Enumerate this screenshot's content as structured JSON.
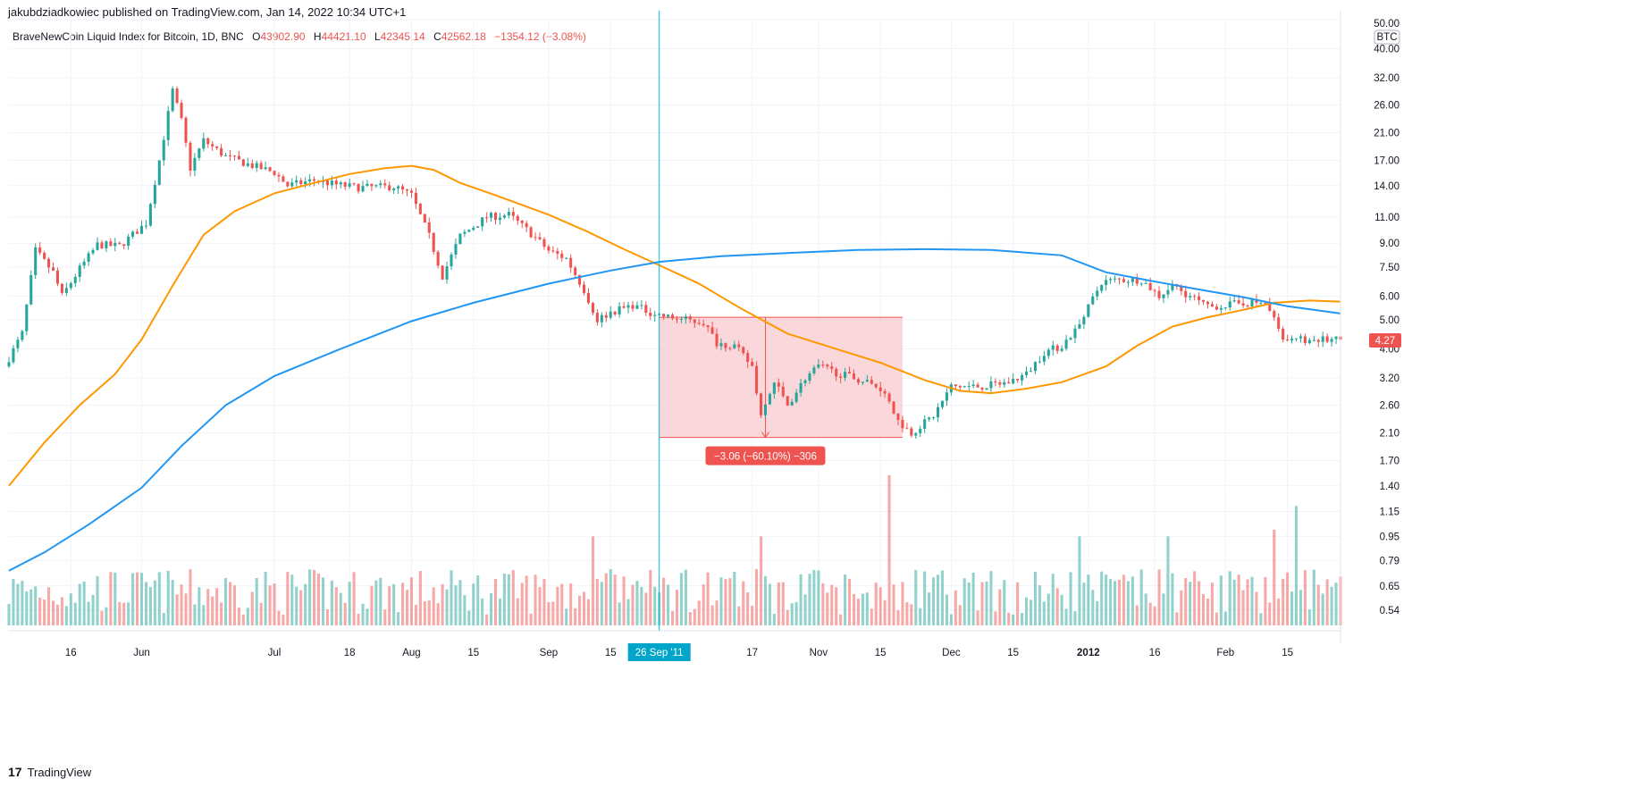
{
  "header": {
    "publisher": "jakubdziadkowiec published on TradingView.com, Jan 14, 2022 10:34 UTC+1"
  },
  "legend": {
    "symbol": "BraveNewCoin Liquid Index for Bitcoin, 1D, BNC",
    "open_label": "O",
    "open": "43902.90",
    "high_label": "H",
    "high": "44421.10",
    "low_label": "L",
    "low": "42345.14",
    "close_label": "C",
    "close": "42562.18",
    "change": "−1354.12 (−3.08%)"
  },
  "footer": {
    "brand": "TradingView",
    "logo_mark": "17"
  },
  "colors": {
    "up": "#26a69a",
    "down": "#ef5350",
    "ma_fast": "#ff9800",
    "ma_slow": "#2196f3",
    "crosshair": "#00bcd4",
    "measure_fill": "#f8c9cd",
    "measure_edge": "#ef5350"
  },
  "chart_data": {
    "type": "candlestick",
    "y_scale": "log",
    "ylim": [
      0.48,
      50
    ],
    "y_unit_badge": "BTC",
    "y_ticks": [
      "50.00",
      "40.00",
      "32.00",
      "26.00",
      "21.00",
      "17.00",
      "14.00",
      "11.00",
      "9.00",
      "7.50",
      "6.00",
      "5.00",
      "4.00",
      "3.20",
      "2.60",
      "2.10",
      "1.70",
      "1.40",
      "1.15",
      "0.95",
      "0.79",
      "0.65",
      "0.54"
    ],
    "x_ticks": [
      {
        "label": "16",
        "date": "2011-05-16"
      },
      {
        "label": "Jun",
        "date": "2011-06-01"
      },
      {
        "label": "Jul",
        "date": "2011-07-01"
      },
      {
        "label": "18",
        "date": "2011-07-18"
      },
      {
        "label": "Aug",
        "date": "2011-08-01"
      },
      {
        "label": "15",
        "date": "2011-08-15"
      },
      {
        "label": "Sep",
        "date": "2011-09-01"
      },
      {
        "label": "15",
        "date": "2011-09-15"
      },
      {
        "label": "17",
        "date": "2011-10-17"
      },
      {
        "label": "Nov",
        "date": "2011-11-01"
      },
      {
        "label": "15",
        "date": "2011-11-15"
      },
      {
        "label": "Dec",
        "date": "2011-12-01"
      },
      {
        "label": "15",
        "date": "2011-12-15"
      },
      {
        "label": "2012",
        "date": "2012-01-01"
      },
      {
        "label": "16",
        "date": "2012-01-16"
      },
      {
        "label": "Feb",
        "date": "2012-02-01"
      },
      {
        "label": "15",
        "date": "2012-02-15"
      }
    ],
    "x_range": [
      "2011-05-02",
      "2012-02-27"
    ],
    "crosshair": {
      "date": "2011-09-26",
      "label": "26 Sep '11"
    },
    "last_price": {
      "value": 4.27,
      "label": "4.27"
    },
    "measure": {
      "start_date": "2011-09-26",
      "end_date": "2011-11-20",
      "top": 5.1,
      "bottom": 2.03,
      "arrow_date": "2011-10-20",
      "label": "−3.06 (−60.10%) −306"
    },
    "price_path": [
      [
        "2011-05-01",
        3.5
      ],
      [
        "2011-05-05",
        4.5
      ],
      [
        "2011-05-08",
        8.5
      ],
      [
        "2011-05-12",
        7.2
      ],
      [
        "2011-05-14",
        6.0
      ],
      [
        "2011-05-18",
        7.4
      ],
      [
        "2011-05-22",
        8.9
      ],
      [
        "2011-05-27",
        8.8
      ],
      [
        "2011-06-02",
        10.5
      ],
      [
        "2011-06-05",
        17.0
      ],
      [
        "2011-06-08",
        29.0
      ],
      [
        "2011-06-10",
        23.0
      ],
      [
        "2011-06-12",
        16.0
      ],
      [
        "2011-06-15",
        19.8
      ],
      [
        "2011-06-20",
        17.5
      ],
      [
        "2011-06-25",
        16.5
      ],
      [
        "2011-07-01",
        15.5
      ],
      [
        "2011-07-04",
        14.0
      ],
      [
        "2011-07-10",
        14.6
      ],
      [
        "2011-07-15",
        14.1
      ],
      [
        "2011-07-20",
        13.8
      ],
      [
        "2011-07-28",
        13.9
      ],
      [
        "2011-08-01",
        13.0
      ],
      [
        "2011-08-05",
        9.5
      ],
      [
        "2011-08-08",
        7.0
      ],
      [
        "2011-08-12",
        9.5
      ],
      [
        "2011-08-18",
        11.0
      ],
      [
        "2011-08-23",
        11.2
      ],
      [
        "2011-08-28",
        9.7
      ],
      [
        "2011-09-01",
        8.5
      ],
      [
        "2011-09-05",
        8.0
      ],
      [
        "2011-09-09",
        6.3
      ],
      [
        "2011-09-12",
        5.0
      ],
      [
        "2011-09-15",
        5.3
      ],
      [
        "2011-09-20",
        5.6
      ],
      [
        "2011-09-24",
        5.3
      ],
      [
        "2011-09-28",
        5.1
      ],
      [
        "2011-10-02",
        5.0
      ],
      [
        "2011-10-06",
        4.9
      ],
      [
        "2011-10-09",
        4.2
      ],
      [
        "2011-10-13",
        4.1
      ],
      [
        "2011-10-17",
        3.5
      ],
      [
        "2011-10-19",
        2.4
      ],
      [
        "2011-10-22",
        3.1
      ],
      [
        "2011-10-25",
        2.6
      ],
      [
        "2011-10-29",
        3.2
      ],
      [
        "2011-11-01",
        3.5
      ],
      [
        "2011-11-06",
        3.3
      ],
      [
        "2011-11-12",
        3.1
      ],
      [
        "2011-11-16",
        2.9
      ],
      [
        "2011-11-19",
        2.3
      ],
      [
        "2011-11-22",
        2.1
      ],
      [
        "2011-11-27",
        2.4
      ],
      [
        "2011-12-01",
        3.0
      ],
      [
        "2011-12-08",
        3.0
      ],
      [
        "2011-12-14",
        3.1
      ],
      [
        "2011-12-18",
        3.3
      ],
      [
        "2011-12-22",
        3.9
      ],
      [
        "2011-12-26",
        4.1
      ],
      [
        "2011-12-30",
        4.8
      ],
      [
        "2012-01-04",
        6.7
      ],
      [
        "2012-01-08",
        6.8
      ],
      [
        "2012-01-13",
        6.8
      ],
      [
        "2012-01-17",
        6.0
      ],
      [
        "2012-01-20",
        6.5
      ],
      [
        "2012-01-24",
        6.0
      ],
      [
        "2012-01-28",
        5.5
      ],
      [
        "2012-02-01",
        5.6
      ],
      [
        "2012-02-05",
        5.7
      ],
      [
        "2012-02-10",
        5.7
      ],
      [
        "2012-02-14",
        4.4
      ],
      [
        "2012-02-18",
        4.3
      ],
      [
        "2012-02-22",
        4.3
      ],
      [
        "2012-02-27",
        4.27
      ]
    ],
    "ma_fast_path": [
      [
        "2011-05-02",
        1.4
      ],
      [
        "2011-05-10",
        1.95
      ],
      [
        "2011-05-18",
        2.6
      ],
      [
        "2011-05-26",
        3.3
      ],
      [
        "2011-06-01",
        4.3
      ],
      [
        "2011-06-08",
        6.5
      ],
      [
        "2011-06-15",
        9.6
      ],
      [
        "2011-06-22",
        11.5
      ],
      [
        "2011-07-01",
        13.2
      ],
      [
        "2011-07-10",
        14.3
      ],
      [
        "2011-07-18",
        15.3
      ],
      [
        "2011-07-26",
        16.0
      ],
      [
        "2011-08-01",
        16.3
      ],
      [
        "2011-08-06",
        15.8
      ],
      [
        "2011-08-12",
        14.3
      ],
      [
        "2011-08-20",
        13.0
      ],
      [
        "2011-09-01",
        11.2
      ],
      [
        "2011-09-10",
        9.8
      ],
      [
        "2011-09-18",
        8.6
      ],
      [
        "2011-09-26",
        7.6
      ],
      [
        "2011-10-05",
        6.6
      ],
      [
        "2011-10-15",
        5.4
      ],
      [
        "2011-10-25",
        4.5
      ],
      [
        "2011-11-05",
        4.0
      ],
      [
        "2011-11-15",
        3.6
      ],
      [
        "2011-11-25",
        3.15
      ],
      [
        "2011-12-03",
        2.9
      ],
      [
        "2011-12-10",
        2.85
      ],
      [
        "2011-12-18",
        2.95
      ],
      [
        "2011-12-26",
        3.1
      ],
      [
        "2012-01-05",
        3.5
      ],
      [
        "2012-01-12",
        4.1
      ],
      [
        "2012-01-20",
        4.75
      ],
      [
        "2012-01-28",
        5.1
      ],
      [
        "2012-02-05",
        5.4
      ],
      [
        "2012-02-12",
        5.7
      ],
      [
        "2012-02-20",
        5.8
      ],
      [
        "2012-02-27",
        5.75
      ]
    ],
    "ma_slow_path": [
      [
        "2011-05-02",
        0.73
      ],
      [
        "2011-05-10",
        0.84
      ],
      [
        "2011-05-20",
        1.04
      ],
      [
        "2011-06-01",
        1.38
      ],
      [
        "2011-06-10",
        1.9
      ],
      [
        "2011-06-20",
        2.6
      ],
      [
        "2011-07-01",
        3.25
      ],
      [
        "2011-07-15",
        3.95
      ],
      [
        "2011-08-01",
        4.95
      ],
      [
        "2011-08-15",
        5.7
      ],
      [
        "2011-09-01",
        6.6
      ],
      [
        "2011-09-15",
        7.3
      ],
      [
        "2011-09-26",
        7.8
      ],
      [
        "2011-10-10",
        8.15
      ],
      [
        "2011-10-25",
        8.35
      ],
      [
        "2011-11-10",
        8.55
      ],
      [
        "2011-11-25",
        8.6
      ],
      [
        "2011-12-10",
        8.55
      ],
      [
        "2011-12-26",
        8.2
      ],
      [
        "2012-01-05",
        7.2
      ],
      [
        "2012-01-15",
        6.75
      ],
      [
        "2012-01-25",
        6.35
      ],
      [
        "2012-02-05",
        5.95
      ],
      [
        "2012-02-15",
        5.55
      ],
      [
        "2012-02-27",
        5.25
      ]
    ],
    "volume_spikes": [
      [
        "2011-09-11",
        0.95
      ],
      [
        "2011-10-19",
        0.95
      ],
      [
        "2011-11-17",
        1.52
      ],
      [
        "2011-12-30",
        0.95
      ],
      [
        "2012-01-19",
        0.95
      ],
      [
        "2012-02-12",
        1.0
      ],
      [
        "2012-02-17",
        1.2
      ]
    ]
  }
}
